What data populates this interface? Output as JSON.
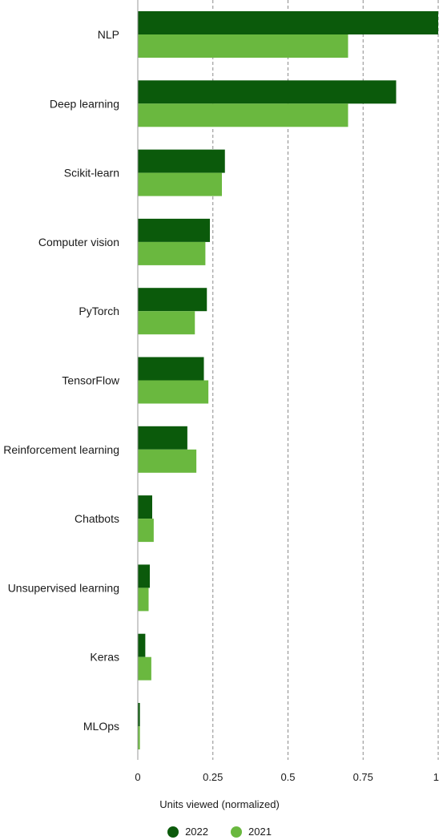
{
  "chart_data": {
    "type": "bar",
    "orientation": "horizontal",
    "title": "",
    "xlabel": "Units viewed (normalized)",
    "ylabel": "",
    "xlim": [
      0,
      1
    ],
    "xticks": [
      0,
      0.25,
      0.5,
      0.75,
      1
    ],
    "xtick_labels": [
      "0",
      "0.25",
      "0.5",
      "0.75",
      "1"
    ],
    "grid": "vertical dashed",
    "legend_position": "bottom-center",
    "categories": [
      "NLP",
      "Deep learning",
      "Scikit-learn",
      "Computer vision",
      "PyTorch",
      "TensorFlow",
      "Reinforcement learning",
      "Chatbots",
      "Unsupervised learning",
      "Keras",
      "MLOps"
    ],
    "series": [
      {
        "name": "2022",
        "color": "#0b5a0b",
        "values": [
          1.0,
          0.86,
          0.29,
          0.24,
          0.23,
          0.22,
          0.165,
          0.048,
          0.04,
          0.025,
          0.007
        ]
      },
      {
        "name": "2021",
        "color": "#6ab83f",
        "values": [
          0.7,
          0.7,
          0.28,
          0.225,
          0.19,
          0.235,
          0.195,
          0.053,
          0.036,
          0.045,
          0.007
        ]
      }
    ]
  }
}
